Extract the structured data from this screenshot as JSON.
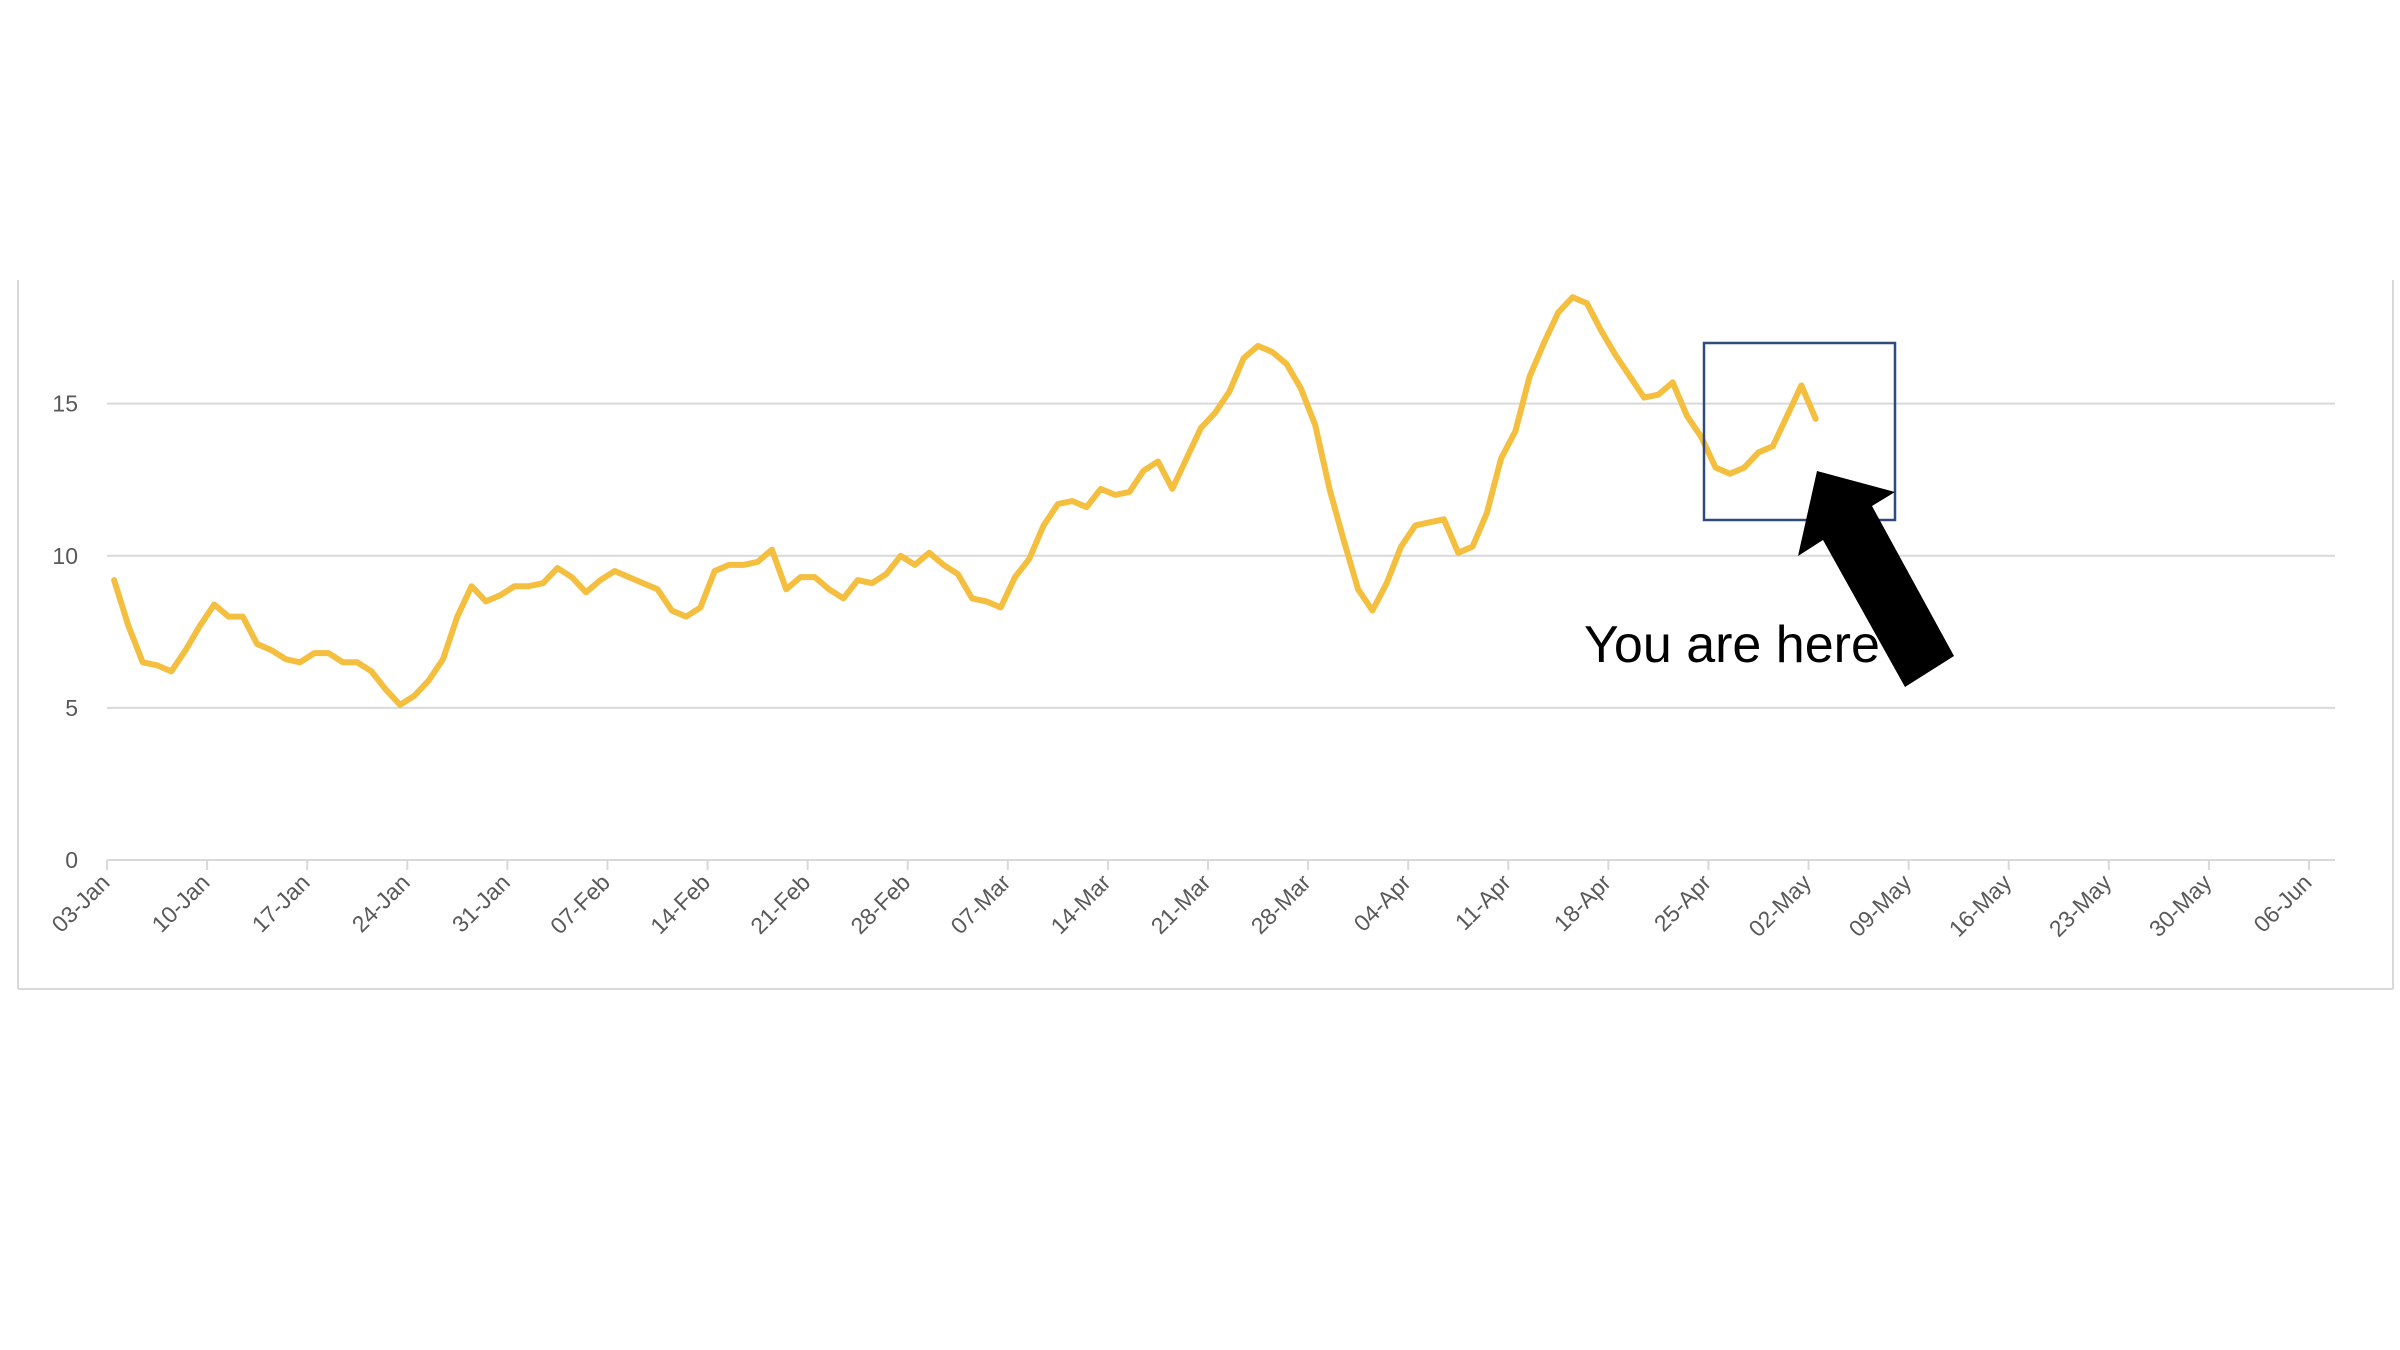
{
  "chart_data": {
    "type": "line",
    "title": "",
    "xlabel": "",
    "ylabel": "",
    "ylim": [
      0,
      19
    ],
    "yticks": [
      "0",
      "5",
      "10",
      "15"
    ],
    "xticks": [
      "03-Jan",
      "10-Jan",
      "17-Jan",
      "24-Jan",
      "31-Jan",
      "07-Feb",
      "14-Feb",
      "21-Feb",
      "28-Feb",
      "07-Mar",
      "14-Mar",
      "21-Mar",
      "28-Mar",
      "04-Apr",
      "11-Apr",
      "18-Apr",
      "25-Apr",
      "02-May",
      "09-May",
      "16-May",
      "23-May",
      "30-May",
      "06-Jun"
    ],
    "xlim": [
      "03-Jan",
      "06-Jun"
    ],
    "grid": "horizontal",
    "legend": "none",
    "colors": {
      "line": "#F4BE3F",
      "grid": "#D9D9D9",
      "highlight_box": "#2F4B7C",
      "arrow": "#000000"
    },
    "series": [
      {
        "x": [
          "03-Jan",
          "04-Jan",
          "05-Jan",
          "06-Jan",
          "07-Jan",
          "08-Jan",
          "09-Jan",
          "10-Jan",
          "11-Jan",
          "12-Jan",
          "13-Jan",
          "14-Jan",
          "15-Jan",
          "16-Jan",
          "17-Jan",
          "18-Jan",
          "19-Jan",
          "20-Jan",
          "21-Jan",
          "22-Jan",
          "23-Jan",
          "24-Jan",
          "25-Jan",
          "26-Jan",
          "27-Jan",
          "28-Jan",
          "29-Jan",
          "30-Jan",
          "31-Jan",
          "01-Feb",
          "02-Feb",
          "03-Feb",
          "04-Feb",
          "05-Feb",
          "06-Feb",
          "07-Feb",
          "08-Feb",
          "09-Feb",
          "10-Feb",
          "11-Feb",
          "12-Feb",
          "13-Feb",
          "14-Feb",
          "15-Feb",
          "16-Feb",
          "17-Feb",
          "18-Feb",
          "19-Feb",
          "20-Feb",
          "21-Feb",
          "22-Feb",
          "23-Feb",
          "24-Feb",
          "25-Feb",
          "26-Feb",
          "27-Feb",
          "28-Feb",
          "01-Mar",
          "02-Mar",
          "03-Mar",
          "04-Mar",
          "05-Mar",
          "06-Mar",
          "07-Mar",
          "08-Mar",
          "09-Mar",
          "10-Mar",
          "11-Mar",
          "12-Mar",
          "13-Mar",
          "14-Mar",
          "15-Mar",
          "16-Mar",
          "17-Mar",
          "18-Mar",
          "19-Mar",
          "20-Mar",
          "21-Mar",
          "22-Mar",
          "23-Mar",
          "24-Mar",
          "25-Mar",
          "26-Mar",
          "27-Mar",
          "28-Mar",
          "29-Mar",
          "30-Mar",
          "31-Mar",
          "01-Apr",
          "02-Apr",
          "03-Apr",
          "04-Apr",
          "05-Apr",
          "06-Apr",
          "07-Apr",
          "08-Apr",
          "09-Apr",
          "10-Apr",
          "11-Apr",
          "12-Apr",
          "13-Apr",
          "14-Apr",
          "15-Apr",
          "16-Apr",
          "17-Apr",
          "18-Apr",
          "19-Apr",
          "20-Apr",
          "21-Apr",
          "22-Apr",
          "23-Apr",
          "24-Apr",
          "25-Apr",
          "26-Apr",
          "27-Apr",
          "28-Apr",
          "29-Apr",
          "30-Apr",
          "01-May",
          "02-May"
        ],
        "values": [
          9.2,
          7.7,
          6.5,
          6.4,
          6.2,
          6.9,
          7.7,
          8.4,
          8.0,
          8.0,
          7.1,
          6.9,
          6.6,
          6.5,
          6.8,
          6.8,
          6.5,
          6.5,
          6.2,
          5.6,
          5.1,
          5.4,
          5.9,
          6.6,
          8.0,
          9.0,
          8.5,
          8.7,
          9.0,
          9.0,
          9.1,
          9.6,
          9.3,
          8.8,
          9.2,
          9.5,
          9.3,
          9.1,
          8.9,
          8.2,
          8.0,
          8.3,
          9.5,
          9.7,
          9.7,
          9.8,
          10.2,
          8.9,
          9.3,
          9.3,
          8.9,
          8.6,
          9.2,
          9.1,
          9.4,
          10.0,
          9.7,
          10.1,
          9.7,
          9.4,
          8.6,
          8.5,
          8.3,
          9.3,
          9.9,
          11.0,
          11.7,
          11.8,
          11.6,
          12.2,
          12.0,
          12.1,
          12.8,
          13.1,
          12.2,
          13.2,
          14.2,
          14.7,
          15.4,
          16.5,
          16.9,
          16.7,
          16.3,
          15.5,
          14.3,
          12.2,
          10.5,
          8.9,
          8.2,
          9.1,
          10.3,
          11.0,
          11.1,
          11.2,
          10.1,
          10.3,
          11.4,
          13.2,
          14.1,
          15.9,
          17.0,
          18.0,
          18.5,
          18.3,
          17.4,
          16.6,
          15.9,
          15.2,
          15.3,
          15.7,
          14.6,
          13.9,
          12.9,
          12.7,
          12.9,
          13.4,
          13.6,
          14.6,
          15.6,
          14.5
        ]
      }
    ],
    "annotations": {
      "callout_text": "You are here",
      "highlight_range": [
        "25-Apr",
        "09-May"
      ]
    }
  }
}
